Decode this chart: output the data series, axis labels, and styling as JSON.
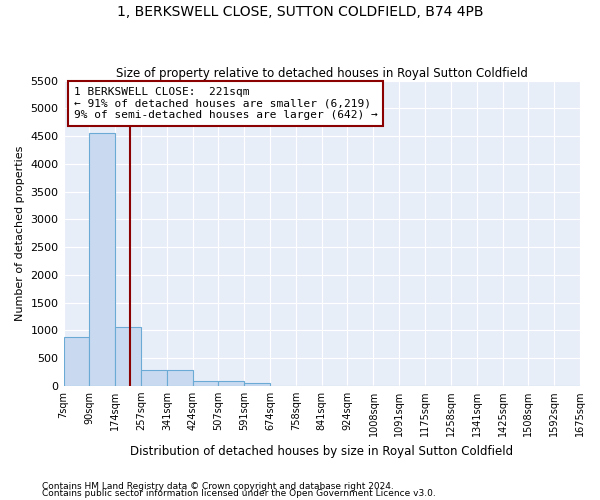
{
  "title": "1, BERKSWELL CLOSE, SUTTON COLDFIELD, B74 4PB",
  "subtitle": "Size of property relative to detached houses in Royal Sutton Coldfield",
  "xlabel": "Distribution of detached houses by size in Royal Sutton Coldfield",
  "ylabel": "Number of detached properties",
  "footnote1": "Contains HM Land Registry data © Crown copyright and database right 2024.",
  "footnote2": "Contains public sector information licensed under the Open Government Licence v3.0.",
  "bar_edges": [
    7,
    90,
    174,
    257,
    341,
    424,
    507,
    591,
    674,
    758,
    841,
    924,
    1008,
    1091,
    1175,
    1258,
    1341,
    1425,
    1508,
    1592,
    1675
  ],
  "bar_heights": [
    880,
    4550,
    1060,
    290,
    290,
    90,
    90,
    55,
    0,
    0,
    0,
    0,
    0,
    0,
    0,
    0,
    0,
    0,
    0,
    0
  ],
  "bar_color": "#c9daf0",
  "bar_edge_color": "#6aaad4",
  "property_size": 221,
  "vline_color": "#8b0000",
  "annotation_line1": "1 BERKSWELL CLOSE:  221sqm",
  "annotation_line2": "← 91% of detached houses are smaller (6,219)",
  "annotation_line3": "9% of semi-detached houses are larger (642) →",
  "annotation_box_color": "#8b0000",
  "ylim": [
    0,
    5500
  ],
  "yticks": [
    0,
    500,
    1000,
    1500,
    2000,
    2500,
    3000,
    3500,
    4000,
    4500,
    5000,
    5500
  ],
  "bg_color": "#e8eef8",
  "tick_labels": [
    "7sqm",
    "90sqm",
    "174sqm",
    "257sqm",
    "341sqm",
    "424sqm",
    "507sqm",
    "591sqm",
    "674sqm",
    "758sqm",
    "841sqm",
    "924sqm",
    "1008sqm",
    "1091sqm",
    "1175sqm",
    "1258sqm",
    "1341sqm",
    "1425sqm",
    "1508sqm",
    "1592sqm",
    "1675sqm"
  ],
  "figsize": [
    6.0,
    5.0
  ],
  "dpi": 100
}
